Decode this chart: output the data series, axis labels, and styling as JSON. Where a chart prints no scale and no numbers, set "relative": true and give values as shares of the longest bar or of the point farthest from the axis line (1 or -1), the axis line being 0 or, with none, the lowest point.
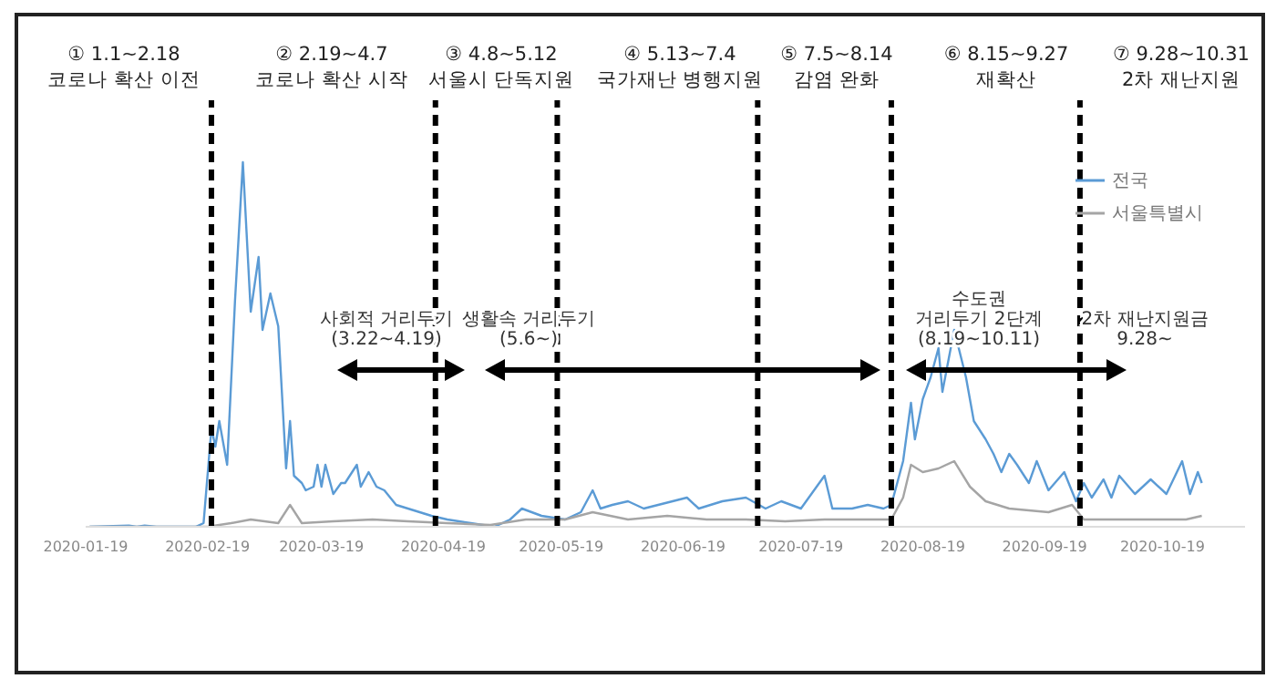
{
  "chart_data": {
    "type": "line",
    "relative": true,
    "legend": "top right",
    "marker": "none",
    "xlim": [
      "2020-01-19",
      "2020-11-09"
    ],
    "xticks": [
      "2020-01-19",
      "2020-02-19",
      "2020-03-19",
      "2020-04-19",
      "2020-05-19",
      "2020-06-19",
      "2020-07-19",
      "2020-08-19",
      "2020-09-19",
      "2020-10-19"
    ],
    "series": [
      {
        "name": "전국",
        "color": "#5b9bd5",
        "x": [
          "2020-01-20",
          "2020-01-30",
          "2020-02-01",
          "2020-02-03",
          "2020-02-06",
          "2020-02-08",
          "2020-02-16",
          "2020-02-18",
          "2020-02-20",
          "2020-02-21",
          "2020-02-22",
          "2020-02-24",
          "2020-02-26",
          "2020-02-28",
          "2020-03-01",
          "2020-03-03",
          "2020-03-04",
          "2020-03-06",
          "2020-03-08",
          "2020-03-10",
          "2020-03-11",
          "2020-03-12",
          "2020-03-14",
          "2020-03-15",
          "2020-03-17",
          "2020-03-18",
          "2020-03-19",
          "2020-03-20",
          "2020-03-22",
          "2020-03-24",
          "2020-03-25",
          "2020-03-28",
          "2020-03-29",
          "2020-03-31",
          "2020-04-02",
          "2020-04-04",
          "2020-04-07",
          "2020-04-10",
          "2020-04-13",
          "2020-04-16",
          "2020-04-20",
          "2020-04-26",
          "2020-05-02",
          "2020-05-06",
          "2020-05-09",
          "2020-05-14",
          "2020-05-20",
          "2020-05-24",
          "2020-05-27",
          "2020-05-29",
          "2020-06-01",
          "2020-06-05",
          "2020-06-07",
          "2020-06-09",
          "2020-06-20",
          "2020-06-23",
          "2020-06-29",
          "2020-07-05",
          "2020-07-10",
          "2020-07-14",
          "2020-07-19",
          "2020-07-25",
          "2020-07-27",
          "2020-08-01",
          "2020-08-05",
          "2020-08-09",
          "2020-08-11",
          "2020-08-14",
          "2020-08-16",
          "2020-08-17",
          "2020-08-19",
          "2020-08-21",
          "2020-08-23",
          "2020-08-24",
          "2020-08-27",
          "2020-08-30",
          "2020-09-01",
          "2020-09-04",
          "2020-09-06",
          "2020-09-08",
          "2020-09-10",
          "2020-09-12",
          "2020-09-15",
          "2020-09-17",
          "2020-09-20",
          "2020-09-24",
          "2020-09-27",
          "2020-09-29",
          "2020-10-01",
          "2020-10-04",
          "2020-10-06",
          "2020-10-08",
          "2020-10-12",
          "2020-10-16",
          "2020-10-20",
          "2020-10-24",
          "2020-10-26",
          "2020-10-28",
          "2020-10-29"
        ],
        "values": [
          0,
          0.003,
          0,
          0.003,
          0,
          0,
          0,
          0.01,
          0.27,
          0.22,
          0.29,
          0.17,
          0.62,
          1.0,
          0.59,
          0.74,
          0.54,
          0.64,
          0.55,
          0.16,
          0.29,
          0.14,
          0.12,
          0.1,
          0.11,
          0.17,
          0.11,
          0.17,
          0.09,
          0.12,
          0.12,
          0.17,
          0.11,
          0.15,
          0.11,
          0.1,
          0.06,
          0.05,
          0.04,
          0.03,
          0.02,
          0.01,
          0.0,
          0.02,
          0.05,
          0.03,
          0.02,
          0.04,
          0.1,
          0.05,
          0.06,
          0.07,
          0.06,
          0.05,
          0.08,
          0.05,
          0.07,
          0.08,
          0.05,
          0.07,
          0.05,
          0.14,
          0.05,
          0.05,
          0.06,
          0.05,
          0.06,
          0.18,
          0.34,
          0.24,
          0.35,
          0.41,
          0.49,
          0.37,
          0.54,
          0.41,
          0.29,
          0.24,
          0.2,
          0.15,
          0.2,
          0.17,
          0.12,
          0.18,
          0.1,
          0.15,
          0.07,
          0.12,
          0.08,
          0.13,
          0.08,
          0.14,
          0.09,
          0.13,
          0.09,
          0.18,
          0.09,
          0.15,
          0.12
        ]
      },
      {
        "name": "서울특별시",
        "color": "#a5a5a5",
        "x": [
          "2020-01-20",
          "2020-02-19",
          "2020-02-25",
          "2020-03-01",
          "2020-03-08",
          "2020-03-11",
          "2020-03-14",
          "2020-03-22",
          "2020-04-01",
          "2020-04-10",
          "2020-04-20",
          "2020-05-01",
          "2020-05-10",
          "2020-05-20",
          "2020-05-27",
          "2020-06-05",
          "2020-06-15",
          "2020-06-25",
          "2020-07-05",
          "2020-07-15",
          "2020-07-25",
          "2020-08-05",
          "2020-08-11",
          "2020-08-14",
          "2020-08-16",
          "2020-08-19",
          "2020-08-23",
          "2020-08-27",
          "2020-08-31",
          "2020-09-04",
          "2020-09-10",
          "2020-09-20",
          "2020-09-26",
          "2020-09-29",
          "2020-10-05",
          "2020-10-15",
          "2020-10-25",
          "2020-10-29"
        ],
        "values": [
          0,
          0,
          0.01,
          0.02,
          0.01,
          0.06,
          0.01,
          0.015,
          0.02,
          0.015,
          0.01,
          0.005,
          0.02,
          0.02,
          0.04,
          0.02,
          0.03,
          0.02,
          0.02,
          0.015,
          0.02,
          0.02,
          0.02,
          0.08,
          0.17,
          0.15,
          0.16,
          0.18,
          0.11,
          0.07,
          0.05,
          0.04,
          0.06,
          0.02,
          0.02,
          0.02,
          0.02,
          0.03
        ]
      }
    ],
    "ref_lines": [
      {
        "axis": "x",
        "value": "2020-02-20",
        "line_style": "dashed",
        "color": "#000000"
      },
      {
        "axis": "x",
        "value": "2020-04-17",
        "line_style": "dashed",
        "color": "#000000"
      },
      {
        "axis": "x",
        "value": "2020-05-18",
        "line_style": "dashed",
        "color": "#000000"
      },
      {
        "axis": "x",
        "value": "2020-07-08",
        "line_style": "dashed",
        "color": "#000000"
      },
      {
        "axis": "x",
        "value": "2020-08-11",
        "line_style": "dashed",
        "color": "#000000"
      },
      {
        "axis": "x",
        "value": "2020-09-28",
        "line_style": "dashed",
        "color": "#000000"
      }
    ],
    "annotations": [
      "① 1.1~2.18\n코로나 확산 이전",
      "② 2.19~4.7\n코로나 확산 시작",
      "③ 4.8~5.12\n서울시 단독지원",
      "④ 5.13~7.4\n국가재난 병행지원",
      "⑤ 7.5~8.14\n감염 완화",
      "⑥ 8.15~9.27\n재확산",
      "⑦ 9.28~10.31\n2차 재난지원",
      "사회적 거리두기\n(3.22~4.19)",
      "생활속 거리두기\n(5.6~)",
      "수도권\n거리두기 2단계\n(8.19~10.11)",
      "2차 재난지원금\n9.28~"
    ]
  }
}
